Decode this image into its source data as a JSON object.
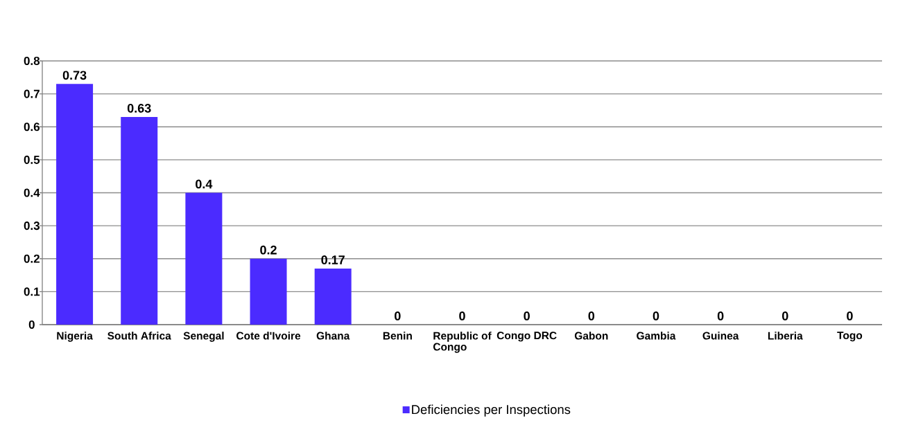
{
  "chart_data": {
    "type": "bar",
    "categories": [
      "Nigeria",
      "South Africa",
      "Senegal",
      "Cote d'Ivoire",
      "Ghana",
      "Benin",
      "Republic of Congo",
      "Congo DRC",
      "Gabon",
      "Gambia",
      "Guinea",
      "Liberia",
      "Togo"
    ],
    "series": [
      {
        "name": "Deficiencies per Inspections",
        "color": "#4b2bff",
        "values": [
          0.73,
          0.63,
          0.4,
          0.2,
          0.17,
          0,
          0,
          0,
          0,
          0,
          0,
          0,
          0
        ]
      }
    ],
    "ylim": [
      0,
      0.8
    ],
    "yticks": [
      0,
      0.1,
      0.2,
      0.3,
      0.4,
      0.5,
      0.6,
      0.7,
      0.8
    ],
    "grid": "y",
    "legend": "bottom",
    "data_labels": true
  }
}
